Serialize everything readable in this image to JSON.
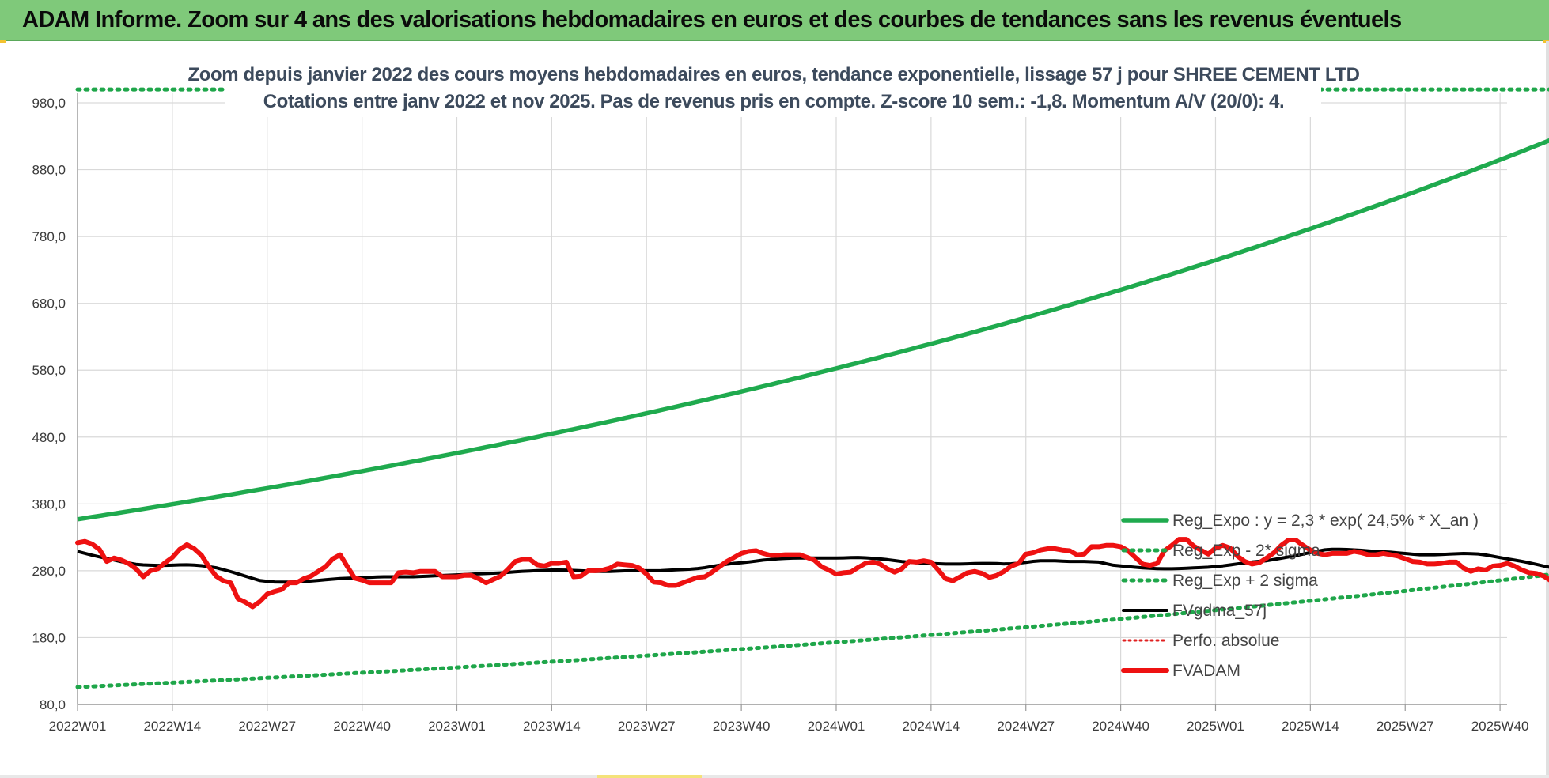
{
  "header": {
    "title": "ADAM Informe. Zoom sur 4 ans des valorisations hebdomadaires en euros et des courbes de tendances sans les revenus éventuels"
  },
  "colors": {
    "banner": "#7fc97a",
    "reg_expo": "#1faa4e",
    "sigma": "#1fa64a",
    "fvgdma": "#000000",
    "fvadam": "#ee1111",
    "perfo": "#e02020",
    "grid": "#d9d9d9"
  },
  "chart_data": {
    "type": "line",
    "title_line1": "Zoom depuis janvier 2022 des cours moyens hebdomadaires en euros, tendance exponentielle, lissage 57 j pour SHREE CEMENT LTD",
    "title_line2": "Cotations entre janv 2022 et nov 2025. Pas de revenus pris en compte. Z-score 10 sem.: -1,8. Momentum A/V (20/0): 4.",
    "ylim": [
      80,
      1030
    ],
    "yticks": [
      "80,0",
      "180,0",
      "280,0",
      "380,0",
      "480,0",
      "580,0",
      "680,0",
      "780,0",
      "880,0",
      "980,0"
    ],
    "ytick_values": [
      80,
      180,
      280,
      380,
      480,
      580,
      680,
      780,
      880,
      980
    ],
    "xticks": [
      "2022W01",
      "2022W14",
      "2022W27",
      "2022W40",
      "2023W01",
      "2023W14",
      "2023W27",
      "2023W40",
      "2024W01",
      "2024W14",
      "2024W27",
      "2024W40",
      "2025W01",
      "2025W14",
      "2025W27",
      "2025W40"
    ],
    "n_weeks": 210,
    "legend": [
      {
        "key": "reg_expo",
        "label": "Reg_Expo : y = 2,3 * exp( 24,5% *  X_an )"
      },
      {
        "key": "reg_minus",
        "label": "Reg_Exp - 2* sigma"
      },
      {
        "key": "reg_plus",
        "label": "Reg_Exp + 2 sigma"
      },
      {
        "key": "fvgdma",
        "label": "FVgdma_57j"
      },
      {
        "key": "perfo",
        "label": "Perfo. absolue"
      },
      {
        "key": "fvadam",
        "label": "FVADAM"
      }
    ],
    "series": {
      "reg_expo": {
        "start": 357,
        "rate_per_year": 0.245
      },
      "reg_plus": {
        "value": 1000
      },
      "reg_minus": {
        "start": 106,
        "rate_per_year": 0.245
      },
      "fvgdma": [
        309,
        303,
        298,
        293,
        289,
        288,
        288,
        289,
        288,
        285,
        279,
        272,
        265,
        263,
        263,
        264,
        266,
        268,
        269,
        270,
        271,
        271,
        271,
        272,
        273,
        274,
        275,
        276,
        277,
        279,
        280,
        281,
        281,
        280,
        279,
        279,
        280,
        280,
        280,
        281,
        282,
        284,
        288,
        291,
        293,
        296,
        298,
        299,
        299,
        299,
        299,
        300,
        299,
        297,
        294,
        292,
        291,
        290,
        290,
        291,
        291,
        290,
        292,
        295,
        295,
        294,
        294,
        293,
        288,
        286,
        284,
        283,
        283,
        284,
        285,
        287,
        290,
        293,
        295,
        299,
        303,
        308,
        312,
        312,
        311,
        309,
        308,
        306,
        304,
        304,
        305,
        306,
        305,
        301,
        297,
        293,
        288,
        283,
        275,
        272,
        271
      ],
      "fvadam": [
        322,
        324,
        320,
        312,
        294,
        299,
        296,
        291,
        283,
        271,
        280,
        283,
        292,
        300,
        312,
        319,
        313,
        303,
        286,
        272,
        265,
        262,
        238,
        233,
        226,
        234,
        245,
        249,
        252,
        262,
        262,
        268,
        272,
        279,
        286,
        298,
        304,
        286,
        269,
        266,
        262,
        262,
        262,
        262,
        277,
        278,
        277,
        279,
        279,
        279,
        271,
        271,
        271,
        273,
        273,
        268,
        262,
        267,
        272,
        282,
        294,
        297,
        297,
        289,
        287,
        291,
        291,
        293,
        271,
        272,
        280,
        280,
        281,
        284,
        290,
        289,
        288,
        284,
        275,
        263,
        262,
        258,
        258,
        262,
        266,
        270,
        271,
        278,
        286,
        294,
        300,
        306,
        309,
        310,
        306,
        303,
        303,
        304,
        304,
        304,
        300,
        296,
        286,
        281,
        275,
        277,
        278,
        285,
        291,
        293,
        290,
        283,
        278,
        283,
        294,
        293,
        295,
        293,
        281,
        268,
        265,
        271,
        277,
        279,
        276,
        270,
        273,
        279,
        287,
        291,
        305,
        307,
        311,
        313,
        313,
        311,
        310,
        304,
        305,
        316,
        316,
        318,
        318,
        316,
        310,
        300,
        290,
        288,
        291,
        310,
        318,
        327,
        327,
        317,
        311,
        305,
        314,
        318,
        314,
        302,
        294,
        290,
        292,
        299,
        307,
        318,
        326,
        326,
        318,
        311,
        306,
        304,
        306,
        306,
        306,
        309,
        307,
        304,
        304,
        306,
        304,
        302,
        298,
        294,
        293,
        290,
        290,
        291,
        293,
        293,
        284,
        279,
        283,
        281,
        287,
        288,
        291,
        287,
        281,
        277,
        276,
        272,
        265,
        260,
        257,
        258,
        255,
        254,
        256,
        255
      ]
    }
  }
}
